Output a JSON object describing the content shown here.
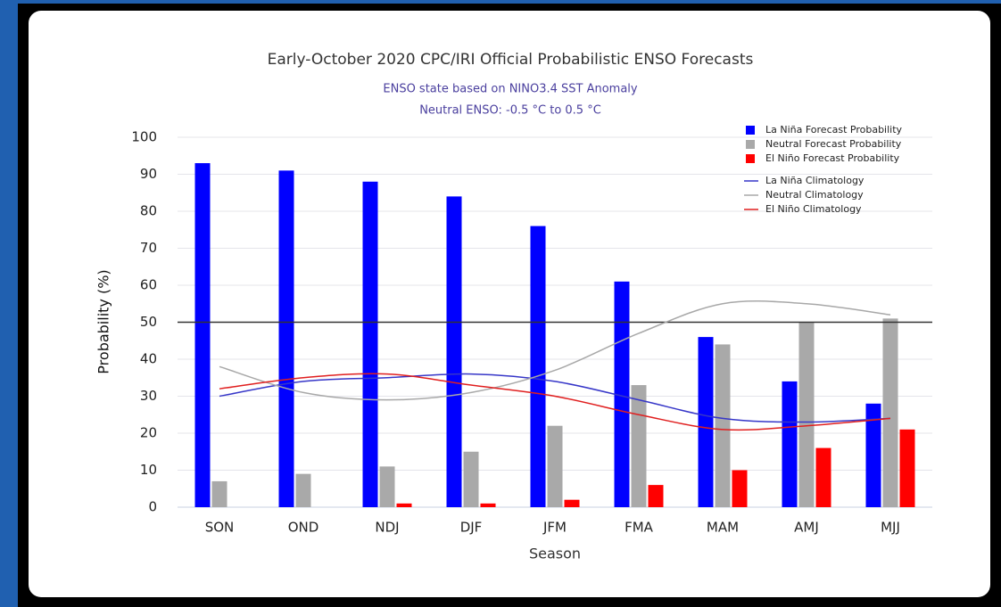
{
  "chart_data": {
    "type": "bar",
    "title": "Early-October 2020 CPC/IRI Official Probabilistic ENSO Forecasts",
    "subtitle": [
      "ENSO state based on NINO3.4 SST Anomaly",
      "Neutral ENSO: -0.5 °C to 0.5 °C"
    ],
    "x_label": "Season",
    "y_label": "Probability (%)",
    "categories": [
      "SON",
      "OND",
      "NDJ",
      "DJF",
      "JFM",
      "FMA",
      "MAM",
      "AMJ",
      "MJJ"
    ],
    "series": [
      {
        "name": "La Niña Forecast Probability",
        "color": "#0000ff",
        "values": [
          93,
          91,
          88,
          84,
          76,
          61,
          46,
          34,
          28
        ]
      },
      {
        "name": "Neutral Forecast Probability",
        "color": "#a9a9a9",
        "values": [
          7,
          9,
          11,
          15,
          22,
          33,
          44,
          50,
          51
        ]
      },
      {
        "name": "El Niño Forecast Probability",
        "color": "#ff0000",
        "values": [
          0,
          0,
          1,
          1,
          2,
          6,
          10,
          16,
          21
        ]
      }
    ],
    "line_series": [
      {
        "name": "La Niña Climatology",
        "color": "#3636c8",
        "values": [
          30,
          34,
          35,
          36,
          34,
          29,
          24,
          23,
          24
        ]
      },
      {
        "name": "Neutral Climatology",
        "color": "#a8a8a8",
        "values": [
          38,
          31,
          29,
          31,
          37,
          47,
          55,
          55,
          52
        ]
      },
      {
        "name": "El Niño Climatology",
        "color": "#e01f1f",
        "values": [
          32,
          35,
          36,
          33,
          30,
          25,
          21,
          22,
          24
        ]
      }
    ],
    "reference_line": 50,
    "ylim": [
      0,
      100
    ],
    "yticks": [
      0,
      10,
      20,
      30,
      40,
      50,
      60,
      70,
      80,
      90,
      100
    ],
    "grid": true,
    "legend": "top-right"
  }
}
